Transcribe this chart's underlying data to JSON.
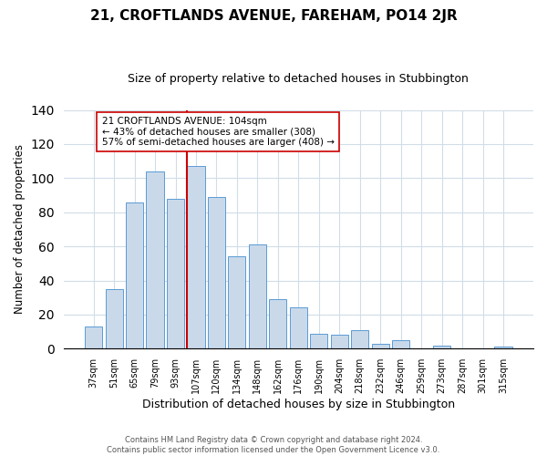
{
  "title": "21, CROFTLANDS AVENUE, FAREHAM, PO14 2JR",
  "subtitle": "Size of property relative to detached houses in Stubbington",
  "xlabel": "Distribution of detached houses by size in Stubbington",
  "ylabel": "Number of detached properties",
  "bar_labels": [
    "37sqm",
    "51sqm",
    "65sqm",
    "79sqm",
    "93sqm",
    "107sqm",
    "120sqm",
    "134sqm",
    "148sqm",
    "162sqm",
    "176sqm",
    "190sqm",
    "204sqm",
    "218sqm",
    "232sqm",
    "246sqm",
    "259sqm",
    "273sqm",
    "287sqm",
    "301sqm",
    "315sqm"
  ],
  "bar_values": [
    13,
    35,
    86,
    104,
    88,
    107,
    89,
    54,
    61,
    29,
    24,
    9,
    8,
    11,
    3,
    5,
    0,
    2,
    0,
    0,
    1
  ],
  "bar_color": "#c9d9ea",
  "bar_edge_color": "#5b9bd5",
  "vline_color": "#cc0000",
  "vline_index": 5,
  "annotation_title": "21 CROFTLANDS AVENUE: 104sqm",
  "annotation_line1": "← 43% of detached houses are smaller (308)",
  "annotation_line2": "57% of semi-detached houses are larger (408) →",
  "annotation_box_edge": "#cc0000",
  "ylim": [
    0,
    140
  ],
  "yticks": [
    0,
    20,
    40,
    60,
    80,
    100,
    120,
    140
  ],
  "footer1": "Contains HM Land Registry data © Crown copyright and database right 2024.",
  "footer2": "Contains public sector information licensed under the Open Government Licence v3.0."
}
